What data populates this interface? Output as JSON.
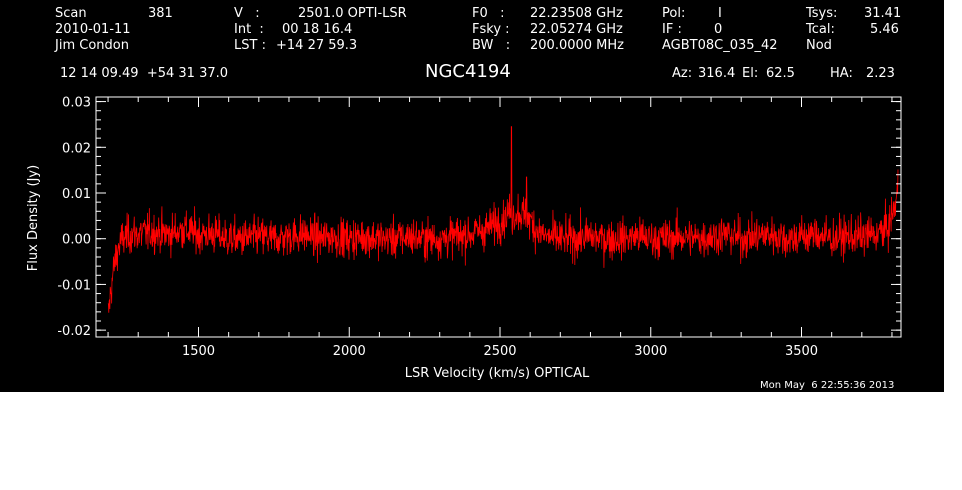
{
  "header": {
    "scan_label": "Scan",
    "scan_value": "381",
    "date": "2010-01-11",
    "observer": "Jim Condon",
    "v_label": "V   :",
    "v_value": "2501.0 OPTI-LSR",
    "int_label": "Int  :",
    "int_value": "00 18 16.4",
    "lst_label": "LST :",
    "lst_value": "+14 27 59.3",
    "f0_label": "F0   :",
    "f0_value": "22.23508 GHz",
    "fsky_label": "Fsky :",
    "fsky_value": "22.05274 GHz",
    "bw_label": "BW   :",
    "bw_value": "200.0000 MHz",
    "pol_label": "Pol:",
    "pol_value": "I",
    "if_label": "IF :",
    "if_value": "0",
    "project": "AGBT08C_035_42",
    "tsys_label": "Tsys:",
    "tsys_value": "31.41",
    "tcal_label": "Tcal:",
    "tcal_value": "5.46",
    "mode": "Nod",
    "coords": "12 14 09.49  +54 31 37.0",
    "source": "NGC4194",
    "az_label": "Az:",
    "az_value": "316.4",
    "el_label": "El:",
    "el_value": "62.5",
    "ha_label": "HA:",
    "ha_value": "2.23"
  },
  "timestamp": "Mon May  6 22:55:36 2013",
  "colors": {
    "background": "#000000",
    "axes": "#ffffff",
    "series": "#ff0000"
  },
  "chart_data": {
    "type": "line",
    "xlabel": "LSR Velocity (km/s) OPTICAL",
    "ylabel": "Flux Density (Jy)",
    "xlim": [
      1160,
      3830
    ],
    "ylim": [
      -0.0215,
      0.031
    ],
    "x_ticks": [
      1500,
      2000,
      2500,
      3000,
      3500
    ],
    "x_tick_labels": [
      "1500",
      "2000",
      "2500",
      "3000",
      "3500"
    ],
    "y_ticks": [
      -0.02,
      -0.01,
      0.0,
      0.01,
      0.02,
      0.03
    ],
    "y_tick_labels": [
      "-0.02",
      "-0.01",
      "0.00",
      "0.01",
      "0.02",
      "0.03"
    ],
    "grid": false,
    "series": [
      {
        "x": [
          1200,
          1210,
          1220,
          1230,
          1240,
          1250,
          1275,
          1300,
          1350,
          1400,
          1450,
          1500,
          1550,
          1600,
          1650,
          1700,
          1750,
          1800,
          1850,
          1900,
          1950,
          2000,
          2050,
          2100,
          2150,
          2200,
          2250,
          2300,
          2350,
          2400,
          2450,
          2480,
          2500,
          2520,
          2530,
          2540,
          2560,
          2580,
          2600,
          2620,
          2650,
          2700,
          2750,
          2800,
          2850,
          2900,
          2950,
          3000,
          3050,
          3100,
          3150,
          3200,
          3250,
          3300,
          3350,
          3400,
          3450,
          3500,
          3550,
          3600,
          3650,
          3700,
          3750,
          3780,
          3790,
          3800,
          3810,
          3815,
          3820
        ],
        "y": [
          -0.017,
          -0.011,
          -0.006,
          -0.003,
          -0.001,
          0.0,
          0.001,
          0.001,
          0.0015,
          0.001,
          0.002,
          0.001,
          0.001,
          0.0,
          0.0,
          0.0005,
          0.0,
          0.0005,
          0.001,
          0.0,
          0.0005,
          0.0,
          0.0005,
          0.0,
          0.0,
          0.0005,
          0.0,
          0.0,
          0.0005,
          0.001,
          0.002,
          0.003,
          0.004,
          0.005,
          0.006,
          0.005,
          0.006,
          0.005,
          0.004,
          0.002,
          0.0005,
          0.0,
          0.0,
          0.0005,
          0.0,
          0.0,
          0.0005,
          0.0,
          0.0,
          0.0005,
          0.0,
          0.0005,
          0.001,
          0.0,
          0.0005,
          0.001,
          0.0,
          0.0005,
          0.001,
          0.0,
          0.0005,
          0.0005,
          0.001,
          0.002,
          0.003,
          0.005,
          0.007,
          0.009,
          0.012
        ]
      }
    ],
    "noise_rms": 0.003
  }
}
